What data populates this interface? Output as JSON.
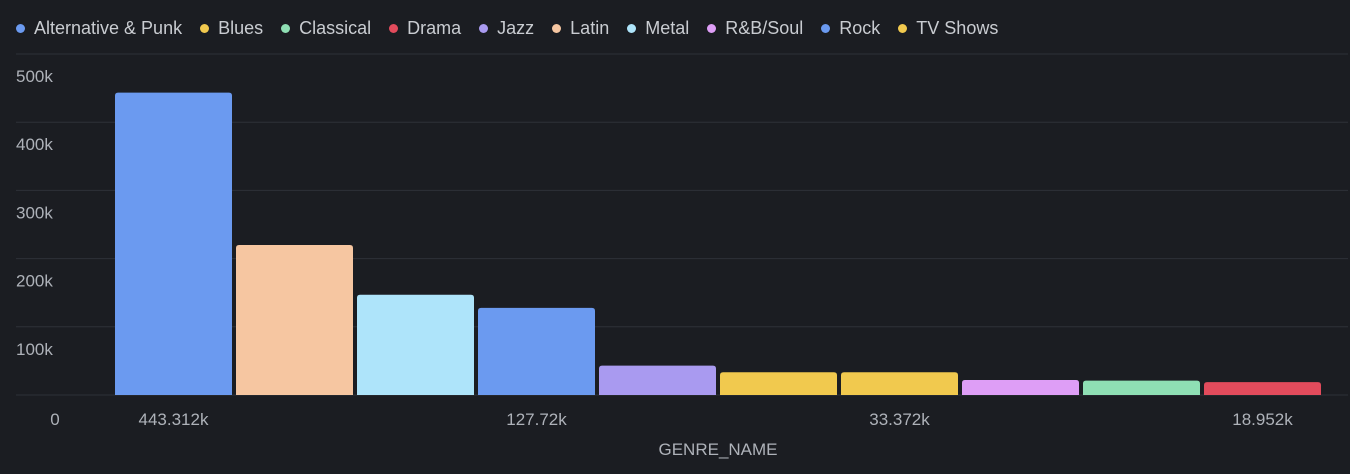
{
  "chart_data": {
    "type": "bar",
    "xlabel": "GENRE_NAME",
    "ylabel": "",
    "ylim": [
      0,
      500000
    ],
    "yticks": [
      0,
      100000,
      200000,
      300000,
      400000,
      500000
    ],
    "ytick_labels": [
      "0",
      "100k",
      "200k",
      "300k",
      "400k",
      "500k"
    ],
    "grid": true,
    "legend_position": "top-left",
    "legend": [
      {
        "name": "Alternative & Punk",
        "color": "#6b9af0"
      },
      {
        "name": "Blues",
        "color": "#f1c94e"
      },
      {
        "name": "Classical",
        "color": "#8fdfb4"
      },
      {
        "name": "Drama",
        "color": "#e24b5c"
      },
      {
        "name": "Jazz",
        "color": "#a99af0"
      },
      {
        "name": "Latin",
        "color": "#f6c6a1"
      },
      {
        "name": "Metal",
        "color": "#aee4fa"
      },
      {
        "name": "R&B/Soul",
        "color": "#de9ef6"
      },
      {
        "name": "Rock",
        "color": "#6b9af0"
      },
      {
        "name": "TV Shows",
        "color": "#f1c94e"
      }
    ],
    "bars": [
      {
        "category": "Rock",
        "value": 443312,
        "color": "#6b9af0"
      },
      {
        "category": "Latin",
        "value": 220000,
        "color": "#f6c6a1"
      },
      {
        "category": "Metal",
        "value": 147000,
        "color": "#aee4fa"
      },
      {
        "category": "Alternative & Punk",
        "value": 127720,
        "color": "#6b9af0"
      },
      {
        "category": "Jazz",
        "value": 43000,
        "color": "#a99af0"
      },
      {
        "category": "Blues",
        "value": 33372,
        "color": "#f1c94e"
      },
      {
        "category": "TV Shows",
        "value": 33372,
        "color": "#f1c94e"
      },
      {
        "category": "R&B/Soul",
        "value": 22000,
        "color": "#de9ef6"
      },
      {
        "category": "Classical",
        "value": 21000,
        "color": "#8fdfb4"
      },
      {
        "category": "Drama",
        "value": 18952,
        "color": "#e24b5c"
      }
    ],
    "x_tick_labels": [
      {
        "bar_index": 0,
        "label": "443.312k"
      },
      {
        "bar_index": 3,
        "label": "127.72k"
      },
      {
        "bar_index": 6,
        "label": "33.372k"
      },
      {
        "bar_index": 9,
        "label": "18.952k"
      }
    ]
  }
}
